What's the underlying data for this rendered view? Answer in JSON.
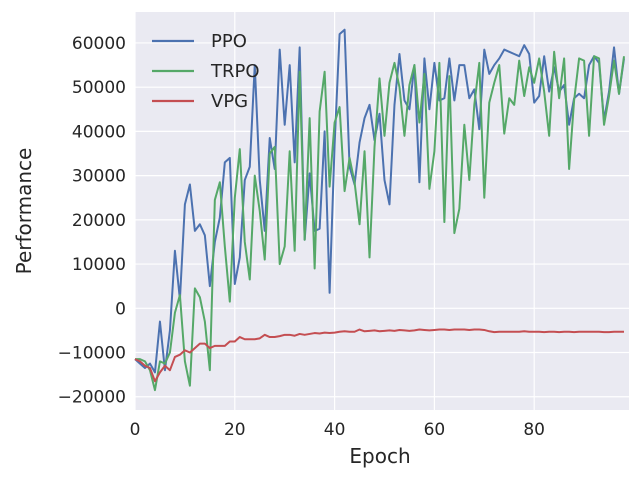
{
  "chart_data": {
    "type": "line",
    "xlabel": "Epoch",
    "ylabel": "Performance",
    "xlim": [
      0,
      99
    ],
    "ylim": [
      -23000,
      67000
    ],
    "xticks": [
      0,
      20,
      40,
      60,
      80
    ],
    "yticks": [
      -20000,
      -10000,
      0,
      10000,
      20000,
      30000,
      40000,
      50000,
      60000
    ],
    "grid": true,
    "background": "#eaeaf2",
    "legend_position": "top-left",
    "series": [
      {
        "name": "PPO",
        "color": "#4c72b0",
        "values": [
          -11500,
          -12500,
          -13500,
          -12500,
          -14500,
          -3000,
          -14000,
          -5000,
          13000,
          2000,
          23500,
          28000,
          17500,
          19000,
          16500,
          5000,
          15000,
          20500,
          33000,
          34000,
          5500,
          11500,
          29000,
          32000,
          55000,
          29000,
          17500,
          38500,
          31500,
          58500,
          41500,
          55000,
          33000,
          59000,
          15500,
          30500,
          17500,
          18000,
          40000,
          3500,
          37000,
          62000,
          63000,
          32000,
          28000,
          37500,
          43000,
          46000,
          38000,
          44000,
          29000,
          23500,
          46000,
          57500,
          47000,
          45000,
          55000,
          28500,
          56500,
          45000,
          55500,
          47000,
          47500,
          56500,
          47000,
          55000,
          55000,
          47500,
          49500,
          40500,
          58500,
          53000,
          55000,
          56500,
          58500,
          58000,
          57500,
          57000,
          59500,
          57500,
          46500,
          48000,
          57000,
          49000,
          54500,
          49000,
          50500,
          41500,
          47500,
          48500,
          47500,
          55000,
          57000,
          55500,
          42500,
          49000,
          59000,
          48500,
          56500
        ]
      },
      {
        "name": "TRPO",
        "color": "#55a868",
        "values": [
          -11500,
          -11500,
          -12000,
          -14000,
          -18500,
          -12000,
          -12500,
          -10000,
          -1000,
          3000,
          -12000,
          -17500,
          4500,
          2500,
          -3000,
          -14000,
          24500,
          28500,
          14000,
          1500,
          25000,
          36000,
          15000,
          6500,
          30000,
          22000,
          11000,
          35000,
          36500,
          10000,
          14000,
          35500,
          13000,
          53500,
          15500,
          43000,
          9000,
          44500,
          53500,
          27500,
          42000,
          45500,
          26500,
          34000,
          28500,
          19000,
          35500,
          11500,
          36500,
          52000,
          39000,
          51000,
          55500,
          50000,
          39000,
          50500,
          55000,
          42000,
          53000,
          27000,
          35500,
          55500,
          19500,
          52500,
          17000,
          22500,
          41500,
          29000,
          46000,
          55500,
          25000,
          46500,
          51000,
          55000,
          39500,
          47500,
          46000,
          56000,
          48000,
          54500,
          51000,
          56500,
          49000,
          39000,
          58000,
          47500,
          56500,
          31500,
          47000,
          56500,
          56000,
          39000,
          57000,
          56500,
          41500,
          48000,
          56000,
          48500,
          57000
        ]
      },
      {
        "name": "VPG",
        "color": "#c44e52",
        "values": [
          -11500,
          -12000,
          -13000,
          -13500,
          -16500,
          -14500,
          -13000,
          -14000,
          -11000,
          -10500,
          -9500,
          -10000,
          -9000,
          -8000,
          -8000,
          -9000,
          -8500,
          -8500,
          -8500,
          -7500,
          -7500,
          -6500,
          -7000,
          -7000,
          -7000,
          -6800,
          -6000,
          -6500,
          -6500,
          -6300,
          -6000,
          -6000,
          -6200,
          -5800,
          -6000,
          -5800,
          -5600,
          -5700,
          -5500,
          -5600,
          -5500,
          -5300,
          -5200,
          -5300,
          -5300,
          -4800,
          -5200,
          -5100,
          -5000,
          -5200,
          -5100,
          -5000,
          -5100,
          -4900,
          -5000,
          -5100,
          -5000,
          -4800,
          -4900,
          -5000,
          -4900,
          -4800,
          -4800,
          -4900,
          -4800,
          -4800,
          -4800,
          -4900,
          -4800,
          -4800,
          -4900,
          -5200,
          -5400,
          -5300,
          -5300,
          -5300,
          -5300,
          -5300,
          -5200,
          -5300,
          -5300,
          -5300,
          -5400,
          -5300,
          -5300,
          -5400,
          -5300,
          -5300,
          -5400,
          -5300,
          -5300,
          -5300,
          -5300,
          -5300,
          -5400,
          -5400,
          -5300,
          -5300,
          -5300
        ]
      }
    ]
  }
}
